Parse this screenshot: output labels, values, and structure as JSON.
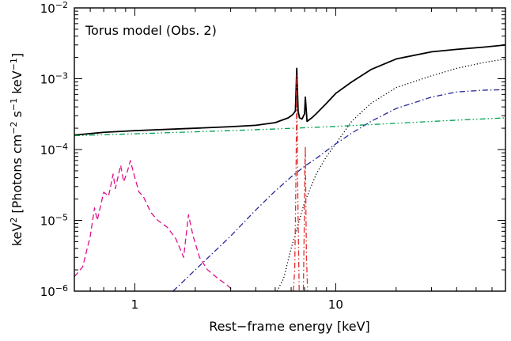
{
  "chart_data": {
    "type": "line",
    "title": "",
    "annotation": "Torus model (Obs. 2)",
    "xlabel": "Rest−frame energy [keV]",
    "ylabel": {
      "base": "keV",
      "base_sup": "2",
      "text1": " [Photons cm",
      "sup1": "−2",
      "text2": " s",
      "sup2": "−1",
      "text3": " keV",
      "sup3": "−1",
      "text4": "]"
    },
    "x_scale": "log",
    "y_scale": "log",
    "xlim": [
      0.5,
      70
    ],
    "ylim": [
      1e-06,
      0.01
    ],
    "x_major_ticks": [
      {
        "value": 1,
        "label": "1"
      },
      {
        "value": 10,
        "label": "10"
      }
    ],
    "y_major_ticks": [
      {
        "value": 1e-06,
        "base": "10",
        "exp": "−6"
      },
      {
        "value": 1e-05,
        "base": "10",
        "exp": "−5"
      },
      {
        "value": 0.0001,
        "base": "10",
        "exp": "−4"
      },
      {
        "value": 0.001,
        "base": "10",
        "exp": "−3"
      },
      {
        "value": 0.01,
        "base": "10",
        "exp": "−2"
      }
    ],
    "grid": false,
    "legend": "none",
    "series": [
      {
        "style": "solid",
        "color": "#000000",
        "x": [
          0.5,
          0.7,
          1.0,
          2.0,
          3.0,
          4.0,
          5.0,
          5.8,
          6.1,
          6.3,
          6.4,
          6.5,
          6.6,
          6.8,
          7.0,
          7.06,
          7.2,
          7.6,
          8.0,
          9.0,
          10.0,
          12.0,
          15.0,
          20.0,
          30.0,
          40.0,
          55.0,
          70.0
        ],
        "y": [
          0.00016,
          0.000175,
          0.000185,
          0.0002,
          0.00021,
          0.00022,
          0.00024,
          0.00028,
          0.00031,
          0.00035,
          0.0014,
          0.00035,
          0.00028,
          0.00027,
          0.00032,
          0.00055,
          0.00025,
          0.00028,
          0.00032,
          0.00045,
          0.00062,
          0.0009,
          0.00135,
          0.0019,
          0.0024,
          0.0026,
          0.0028,
          0.003
        ]
      },
      {
        "style": "dotted",
        "color": "#000000",
        "x": [
          5.1,
          5.5,
          6.0,
          7.0,
          8.0,
          9.0,
          10.0,
          12.0,
          15.0,
          20.0,
          30.0,
          40.0,
          55.0,
          70.0
        ],
        "y": [
          1e-06,
          1.5e-06,
          4e-06,
          1.8e-05,
          4.5e-05,
          8e-05,
          0.00012,
          0.00025,
          0.00045,
          0.00075,
          0.0011,
          0.0014,
          0.0017,
          0.0019
        ]
      },
      {
        "style": "dash-dot",
        "color": "#2a2a9a",
        "x": [
          1.55,
          2.0,
          3.0,
          4.0,
          5.0,
          6.0,
          7.0,
          8.0,
          10.0,
          12.0,
          15.0,
          20.0,
          30.0,
          40.0,
          55.0,
          70.0
        ],
        "y": [
          1e-06,
          2e-06,
          6e-06,
          1.4e-05,
          2.6e-05,
          4.1e-05,
          5.8e-05,
          7.5e-05,
          0.00012,
          0.00017,
          0.00025,
          0.00038,
          0.00055,
          0.00065,
          0.00069,
          0.0007
        ]
      },
      {
        "style": "dash-dot-dot",
        "color": "#00a050",
        "x": [
          0.5,
          1.0,
          2.0,
          5.0,
          10.0,
          20.0,
          40.0,
          70.0
        ],
        "y": [
          0.000157,
          0.000167,
          0.000178,
          0.000195,
          0.000212,
          0.000235,
          0.00026,
          0.00028
        ]
      },
      {
        "style": "dash-dot",
        "color": "#e03030",
        "x": [
          6.15,
          6.25,
          6.3,
          6.35,
          6.38,
          6.4,
          6.42,
          6.46,
          6.5,
          6.58,
          6.9,
          6.98,
          7.02,
          7.06,
          7.1,
          7.15,
          7.25
        ],
        "y": [
          1e-06,
          2e-06,
          1e-05,
          6e-05,
          0.0003,
          0.0011,
          0.0003,
          5e-05,
          1e-05,
          1e-06,
          1e-06,
          1e-05,
          5e-05,
          0.00011,
          2e-05,
          3e-06,
          1e-06
        ]
      },
      {
        "style": "dashed",
        "color": "#e0108a",
        "x": [
          0.5,
          0.55,
          0.6,
          0.63,
          0.65,
          0.7,
          0.74,
          0.78,
          0.8,
          0.85,
          0.88,
          0.92,
          0.95,
          1.0,
          1.05,
          1.1,
          1.2,
          1.3,
          1.45,
          1.6,
          1.75,
          1.85,
          1.95,
          2.1,
          2.3,
          2.6,
          2.9,
          3.1
        ],
        "y": [
          1.6e-06,
          2.2e-06,
          6e-06,
          1.5e-05,
          1e-05,
          2.5e-05,
          2.2e-05,
          4.5e-05,
          2.8e-05,
          6e-05,
          3.5e-05,
          5e-05,
          7e-05,
          4e-05,
          2.5e-05,
          2.2e-05,
          1.3e-05,
          1e-05,
          8e-06,
          5.5e-06,
          3e-06,
          1.2e-05,
          6e-06,
          3e-06,
          2e-06,
          1.5e-06,
          1.2e-06,
          1e-06
        ]
      }
    ]
  }
}
